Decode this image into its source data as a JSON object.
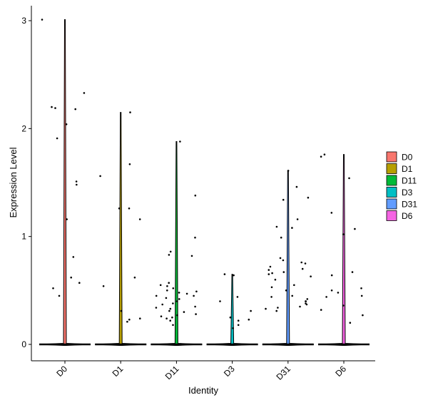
{
  "chart_data": {
    "type": "violin",
    "xlabel": "Identity",
    "ylabel": "Expression Level",
    "ylim": [
      -0.15,
      3.15
    ],
    "yticks": [
      0,
      1,
      2,
      3
    ],
    "categories": [
      "D0",
      "D1",
      "D11",
      "D3",
      "D31",
      "D6"
    ],
    "max_values": [
      3.01,
      2.15,
      1.88,
      0.65,
      1.61,
      1.76
    ],
    "series": [
      {
        "name": "D0",
        "color": "#F8766D",
        "points": [
          3.01,
          2.33,
          2.19,
          2.2,
          2.18,
          2.04,
          1.91,
          1.51,
          1.48,
          1.16,
          0.81,
          0.62,
          0.57,
          0.52,
          0.45
        ]
      },
      {
        "name": "D1",
        "color": "#B79F00",
        "points": [
          2.15,
          1.67,
          1.56,
          1.26,
          1.26,
          1.16,
          0.62,
          0.54,
          0.31,
          0.24,
          0.23,
          0.21
        ]
      },
      {
        "name": "D11",
        "color": "#00BA38",
        "points": [
          1.88,
          1.38,
          0.99,
          0.86,
          0.83,
          0.82,
          0.57,
          0.55,
          0.54,
          0.52,
          0.5,
          0.49,
          0.48,
          0.47,
          0.45,
          0.45,
          0.43,
          0.42,
          0.4,
          0.38,
          0.37,
          0.35,
          0.34,
          0.33,
          0.31,
          0.3,
          0.28,
          0.27,
          0.26,
          0.25,
          0.24,
          0.22,
          0.18
        ]
      },
      {
        "name": "D3",
        "color": "#00BFC4",
        "points": [
          0.65,
          0.64,
          0.44,
          0.4,
          0.31,
          0.25,
          0.23,
          0.22,
          0.18,
          0.15
        ]
      },
      {
        "name": "D31",
        "color": "#619CFF",
        "points": [
          1.61,
          1.46,
          1.36,
          1.34,
          1.16,
          1.09,
          1.08,
          0.99,
          0.8,
          0.78,
          0.76,
          0.75,
          0.72,
          0.7,
          0.69,
          0.67,
          0.66,
          0.65,
          0.63,
          0.6,
          0.55,
          0.53,
          0.5,
          0.45,
          0.44,
          0.42,
          0.4,
          0.4,
          0.38,
          0.37,
          0.35,
          0.34,
          0.33,
          0.31
        ]
      },
      {
        "name": "D6",
        "color": "#F564E3",
        "points": [
          1.76,
          1.74,
          1.54,
          1.22,
          1.07,
          1.02,
          0.67,
          0.64,
          0.52,
          0.5,
          0.48,
          0.45,
          0.44,
          0.36,
          0.32,
          0.27,
          0.2
        ]
      }
    ],
    "legend_position": "right",
    "grid": false
  }
}
